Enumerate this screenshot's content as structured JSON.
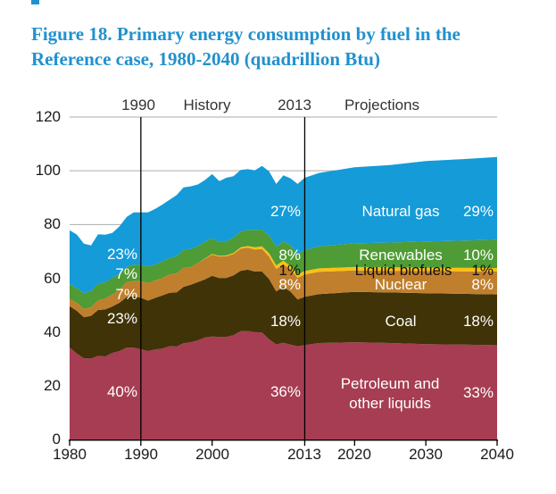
{
  "title": {
    "line1": "Figure 18. Primary energy consumption by fuel in the",
    "line2": "Reference case, 1980-2040 (quadrillion Btu)"
  },
  "header": {
    "history_year": "1990",
    "history": "History",
    "projection_year": "2013",
    "projections": "Projections"
  },
  "y_axis": {
    "ticks": [
      "120",
      "100",
      "80",
      "60",
      "40",
      "20",
      "0"
    ]
  },
  "x_axis": {
    "ticks": [
      "1980",
      "1990",
      "2000",
      "2013",
      "2020",
      "2030",
      "2040"
    ]
  },
  "colors": {
    "title_blue": "#2191ce",
    "grid": "#ababab",
    "axis": "#000000"
  },
  "chart_data": {
    "type": "area",
    "stacked": true,
    "title": "Primary energy consumption by fuel in the Reference case, 1980-2040",
    "ylabel": "quadrillion Btu",
    "xlim": [
      1980,
      2040
    ],
    "ylim": [
      0,
      120
    ],
    "grid": "horizontal",
    "grid_color": "#ababab",
    "dividers": [
      1990,
      2013
    ],
    "x_tick_values": [
      1980,
      1990,
      2000,
      2013,
      2020,
      2030,
      2040
    ],
    "x": [
      1980,
      1981,
      1982,
      1983,
      1984,
      1985,
      1986,
      1987,
      1988,
      1989,
      1990,
      1991,
      1992,
      1993,
      1994,
      1995,
      1996,
      1997,
      1998,
      1999,
      2000,
      2001,
      2002,
      2003,
      2004,
      2005,
      2006,
      2007,
      2008,
      2009,
      2010,
      2011,
      2012,
      2013,
      2015,
      2020,
      2025,
      2030,
      2035,
      2040
    ],
    "series": [
      {
        "name": "Petroleum and other liquids",
        "label_lines": [
          "Petroleum and",
          "other liquids"
        ],
        "color": "#a63d52",
        "share_1990": "40%",
        "share_2013": "36%",
        "share_2040": "33%",
        "values": [
          34.2,
          32.0,
          30.2,
          30.1,
          31.1,
          30.9,
          32.2,
          32.9,
          34.2,
          34.2,
          33.6,
          32.9,
          33.5,
          33.8,
          34.7,
          34.6,
          35.8,
          36.2,
          36.9,
          38.0,
          38.3,
          38.2,
          38.2,
          38.8,
          40.3,
          40.4,
          40.0,
          39.8,
          37.3,
          35.4,
          36.0,
          35.3,
          34.7,
          35.1,
          35.9,
          36.2,
          35.9,
          35.5,
          35.3,
          35.1
        ]
      },
      {
        "name": "Coal",
        "color": "#3f3307",
        "share_1990": "23%",
        "share_2013": "18%",
        "share_2040": "18%",
        "values": [
          15.4,
          15.9,
          15.3,
          15.9,
          17.1,
          17.5,
          17.3,
          18.0,
          18.8,
          19.1,
          19.2,
          18.8,
          19.2,
          19.8,
          19.9,
          20.1,
          21.0,
          21.4,
          21.7,
          21.6,
          22.6,
          21.9,
          21.9,
          22.3,
          22.5,
          22.8,
          22.5,
          22.7,
          22.4,
          19.7,
          20.8,
          19.7,
          17.4,
          18.0,
          18.2,
          18.7,
          18.8,
          18.9,
          18.9,
          18.9
        ]
      },
      {
        "name": "Nuclear",
        "color": "#c07f2d",
        "share_1990": "7%",
        "share_2013": "8%",
        "share_2040": "8%",
        "values": [
          2.7,
          3.0,
          3.1,
          3.2,
          3.6,
          4.1,
          4.5,
          4.9,
          5.6,
          5.6,
          6.1,
          6.5,
          6.5,
          6.5,
          6.8,
          7.1,
          7.1,
          6.6,
          7.1,
          7.6,
          7.9,
          8.0,
          8.1,
          7.9,
          8.2,
          8.2,
          8.2,
          8.4,
          8.4,
          8.4,
          8.4,
          8.3,
          8.1,
          8.3,
          8.3,
          8.0,
          8.1,
          8.3,
          8.4,
          8.5
        ]
      },
      {
        "name": "Liquid biofuels",
        "color": "#fdc013",
        "share_2013": "1%",
        "share_2040": "1%",
        "values": [
          0,
          0,
          0,
          0,
          0,
          0,
          0,
          0,
          0,
          0,
          0,
          0,
          0,
          0,
          0,
          0,
          0,
          0,
          0,
          0.15,
          0.25,
          0.25,
          0.3,
          0.4,
          0.5,
          0.6,
          0.8,
          1.0,
          1.2,
          1.3,
          1.3,
          1.3,
          1.3,
          1.3,
          1.3,
          1.3,
          1.3,
          1.3,
          1.3,
          1.3
        ]
      },
      {
        "name": "Renewables",
        "color": "#4f9b35",
        "share_1990": "7%",
        "share_2013": "8%",
        "share_2040": "10%",
        "values": [
          5.4,
          5.5,
          5.8,
          6.0,
          6.1,
          6.0,
          6.2,
          5.8,
          5.6,
          6.2,
          6.0,
          6.2,
          5.9,
          6.1,
          6.1,
          6.4,
          6.8,
          6.7,
          6.3,
          6.2,
          5.9,
          5.0,
          5.3,
          5.7,
          5.9,
          6.0,
          6.5,
          6.2,
          6.7,
          6.9,
          7.2,
          7.7,
          7.5,
          7.8,
          8.2,
          8.8,
          9.2,
          9.7,
          10.1,
          10.6
        ]
      },
      {
        "name": "Natural gas",
        "color": "#149bd8",
        "share_1990": "23%",
        "share_2013": "27%",
        "share_2040": "29%",
        "values": [
          20.2,
          19.9,
          18.5,
          17.0,
          18.5,
          17.7,
          16.7,
          17.7,
          18.6,
          19.4,
          19.6,
          20.1,
          20.7,
          21.2,
          21.7,
          22.7,
          23.1,
          23.3,
          22.9,
          23.0,
          23.8,
          22.8,
          23.6,
          22.9,
          22.9,
          22.6,
          22.2,
          23.7,
          23.8,
          23.4,
          24.6,
          24.9,
          26.1,
          26.9,
          27.3,
          28.3,
          28.8,
          29.9,
          30.3,
          30.7
        ]
      }
    ]
  }
}
